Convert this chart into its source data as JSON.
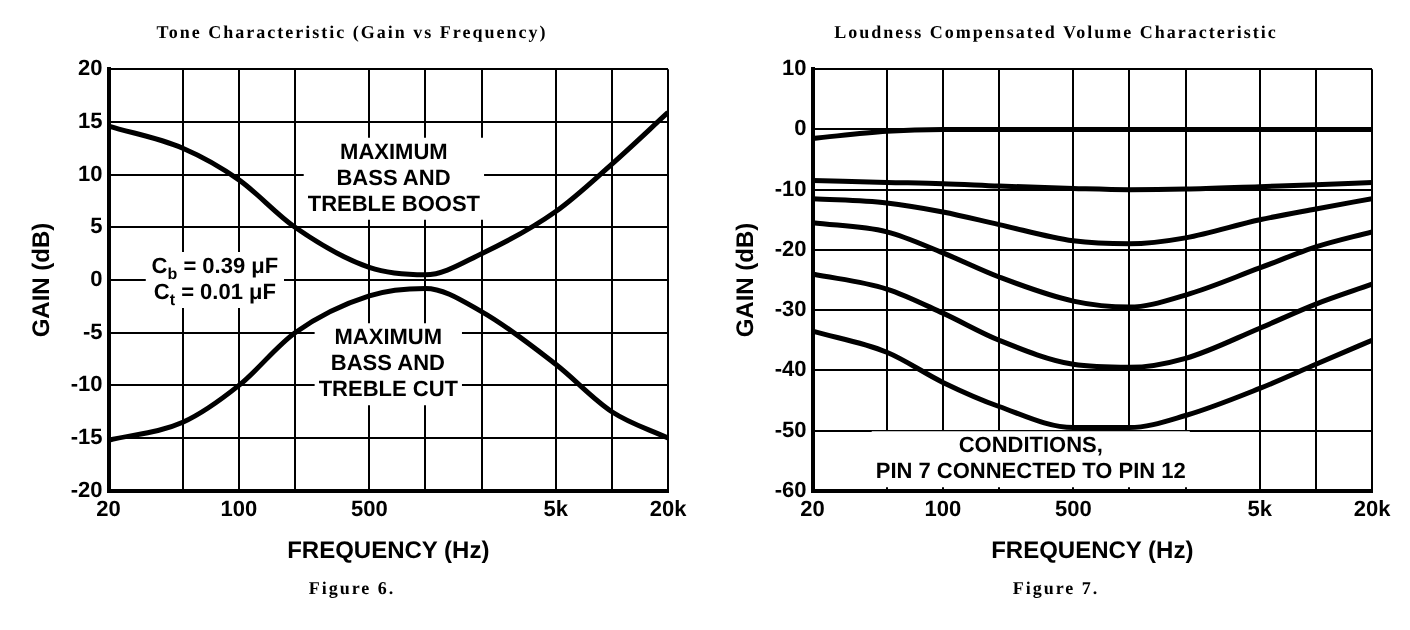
{
  "chart_data": [
    {
      "type": "line",
      "title": "Tone Characteristic (Gain vs Frequency)",
      "xlabel": "FREQUENCY (Hz)",
      "ylabel": "GAIN (dB)",
      "log": "x",
      "grid": true,
      "legend": false,
      "marker": "none",
      "line_style": "solid",
      "xlim": [
        20,
        20000
      ],
      "xticks": [
        20,
        {
          "value": 50,
          "label": null
        },
        100,
        {
          "value": 200,
          "label": null
        },
        500,
        {
          "value": 1000,
          "label": null
        },
        {
          "value": 2000,
          "label": null
        },
        {
          "value": 5000,
          "label": "5k"
        },
        {
          "value": 10000,
          "label": null
        },
        {
          "value": 20000,
          "label": "20k"
        }
      ],
      "ylim": [
        -20,
        20
      ],
      "yticks": [
        -20,
        -15,
        -10,
        -5,
        0,
        5,
        10,
        15,
        20
      ],
      "x": [
        20,
        50,
        100,
        200,
        500,
        1000,
        2000,
        5000,
        10000,
        20000
      ],
      "series": [
        {
          "color": "#000000",
          "values": [
            14.6,
            12.5,
            9.5,
            5,
            1.2,
            0.5,
            2.5,
            6.5,
            11,
            15.9
          ]
        },
        {
          "color": "#000000",
          "values": [
            -15.2,
            -13.5,
            -10,
            -5,
            -1.5,
            -0.8,
            -3,
            -8,
            -12.5,
            -15
          ]
        }
      ],
      "annotations": [
        "MAXIMUM\nBASS AND\nTREBLE BOOST",
        "C$_{b}$ = 0.39 μF\nC$_{t}$ = 0.01 μF",
        "MAXIMUM\nBASS AND\nTREBLE CUT",
        "Figure 6."
      ]
    },
    {
      "type": "line",
      "title": "Loudness Compensated Volume Characteristic",
      "xlabel": "FREQUENCY (Hz)",
      "ylabel": "GAIN (dB)",
      "log": "x",
      "grid": true,
      "legend": false,
      "marker": "none",
      "line_style": "solid",
      "xlim": [
        20,
        20000
      ],
      "xticks": [
        20,
        {
          "value": 50,
          "label": null
        },
        100,
        {
          "value": 200,
          "label": null
        },
        500,
        {
          "value": 1000,
          "label": null
        },
        {
          "value": 2000,
          "label": null
        },
        {
          "value": 5000,
          "label": "5k"
        },
        {
          "value": 10000,
          "label": null
        },
        {
          "value": 20000,
          "label": "20k"
        }
      ],
      "ylim": [
        -60,
        10
      ],
      "yticks": [
        -60,
        -50,
        -40,
        -30,
        -20,
        -10,
        0,
        10
      ],
      "x": [
        20,
        50,
        100,
        200,
        500,
        1000,
        2000,
        5000,
        10000,
        20000
      ],
      "series": [
        {
          "color": "#000000",
          "values": [
            -1.5,
            -0.3,
            0,
            0,
            0,
            0,
            0,
            0,
            0,
            0
          ]
        },
        {
          "color": "#000000",
          "values": [
            -8.5,
            -8.8,
            -9,
            -9.4,
            -9.8,
            -10,
            -9.9,
            -9.5,
            -9.2,
            -8.8
          ]
        },
        {
          "color": "#000000",
          "values": [
            -11.5,
            -12.2,
            -13.7,
            -15.8,
            -18.5,
            -19,
            -18,
            -15,
            -13.2,
            -11.5
          ]
        },
        {
          "color": "#000000",
          "values": [
            -15.5,
            -17,
            -20.5,
            -24.5,
            -28.5,
            -29.5,
            -27.5,
            -23,
            -19.5,
            -17
          ]
        },
        {
          "color": "#000000",
          "values": [
            -24,
            -26.5,
            -30.5,
            -35,
            -39,
            -39.5,
            -38,
            -33,
            -29,
            -25.7
          ]
        },
        {
          "color": "#000000",
          "values": [
            -33.5,
            -37,
            -42,
            -46,
            -49.5,
            -49.5,
            -47.5,
            -43,
            -39,
            -35
          ]
        }
      ],
      "annotations": [
        "CONDITIONS,\nPIN 7 CONNECTED TO PIN 12",
        "Figure 7."
      ]
    }
  ]
}
